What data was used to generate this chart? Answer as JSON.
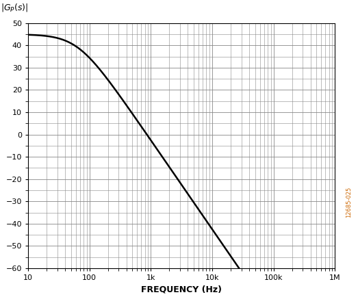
{
  "ylabel_text": "|G_P(s)|",
  "xlabel": "FREQUENCY (Hz)",
  "freq_min": 10,
  "freq_max": 1000000,
  "ylim": [
    -60,
    50
  ],
  "yticks": [
    -60,
    -50,
    -40,
    -30,
    -20,
    -10,
    0,
    10,
    20,
    30,
    40,
    50
  ],
  "xtick_labels": [
    "10",
    "100",
    "1k",
    "10k",
    "100k",
    "1M"
  ],
  "xtick_vals": [
    10,
    100,
    1000,
    10000,
    100000,
    1000000
  ],
  "K_dB": 45.0,
  "fc": 65.0,
  "order": 2,
  "line_color": "#000000",
  "line_width": 1.8,
  "grid_major_color": "#888888",
  "grid_minor_color": "#888888",
  "bg_color": "#ffffff",
  "watermark": "12685-025",
  "watermark_color": "#cc6600",
  "fig_width": 5.23,
  "fig_height": 4.34,
  "dpi": 100
}
